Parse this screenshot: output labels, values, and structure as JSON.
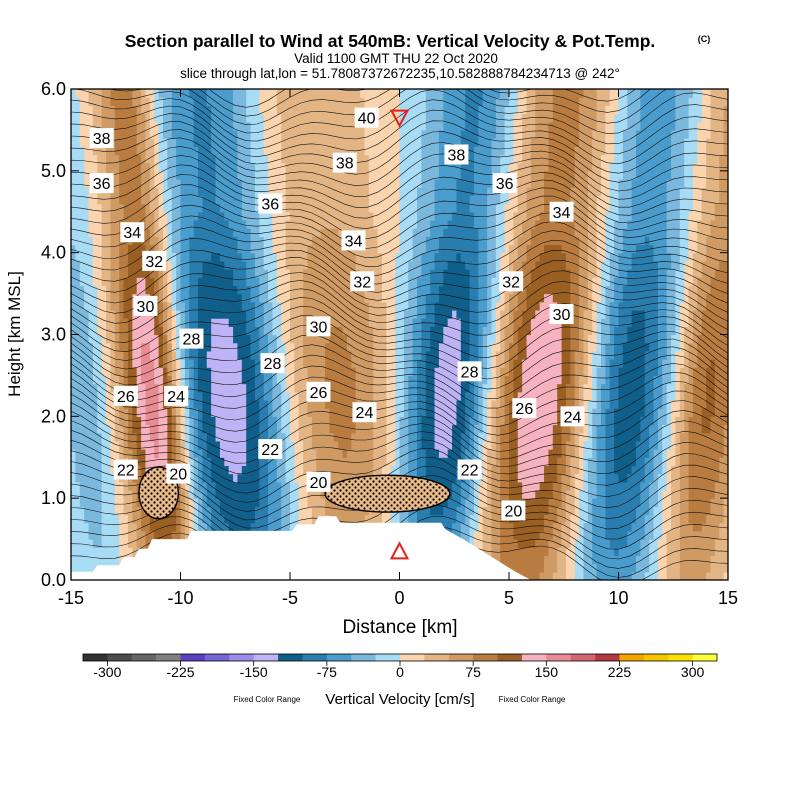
{
  "chart_data": {
    "type": "cross-section",
    "title": "Section parallel to Wind at 540mB: Vertical Velocity & Pot.Temp.",
    "copyright": "(C)",
    "valid": "Valid 1100 GMT THU 22 Oct 2020",
    "slice": "slice through lat,lon = 51.78087372672235,10.582888784234713 @ 242°",
    "xlabel": "Distance [km]",
    "ylabel": "Height [km MSL]",
    "xlim": [
      -15,
      15
    ],
    "ylim": [
      0,
      6
    ],
    "x_ticks": [
      -15,
      -10,
      -5,
      0,
      5,
      10,
      15
    ],
    "x_tick_labels": [
      "-15",
      "-10",
      "-5",
      "0",
      "5",
      "10",
      "15"
    ],
    "y_ticks": [
      0,
      1,
      2,
      3,
      4,
      5,
      6
    ],
    "y_tick_labels": [
      "0.0",
      "1.0",
      "2.0",
      "3.0",
      "4.0",
      "5.0",
      "6.0"
    ],
    "velocity_bands": [
      {
        "center": -14.3,
        "width": 1.0,
        "value": -60
      },
      {
        "center": -12.6,
        "width": 1.3,
        "value": 70
      },
      {
        "center": -11.3,
        "width": 0.9,
        "value": 150
      },
      {
        "center": -7.8,
        "width": 2.2,
        "value": -150
      },
      {
        "center": -4.7,
        "width": 1.6,
        "value": 80
      },
      {
        "center": -2.0,
        "width": 1.6,
        "value": 60
      },
      {
        "center": 1.5,
        "width": 1.3,
        "value": -60
      },
      {
        "center": 3.0,
        "width": 1.3,
        "value": -120
      },
      {
        "center": 6.8,
        "width": 2.0,
        "value": 160
      },
      {
        "center": 10.5,
        "width": 1.6,
        "value": -140
      },
      {
        "center": 14.3,
        "width": 1.2,
        "value": 110
      }
    ],
    "theta_contour_labels": [
      {
        "x": -13.6,
        "y": 5.4,
        "text": "38"
      },
      {
        "x": -13.6,
        "y": 4.85,
        "text": "36"
      },
      {
        "x": -12.2,
        "y": 4.25,
        "text": "34"
      },
      {
        "x": -11.2,
        "y": 3.9,
        "text": "32"
      },
      {
        "x": -11.6,
        "y": 3.35,
        "text": "30"
      },
      {
        "x": -9.5,
        "y": 2.95,
        "text": "28"
      },
      {
        "x": -12.5,
        "y": 2.25,
        "text": "26"
      },
      {
        "x": -10.2,
        "y": 2.25,
        "text": "24"
      },
      {
        "x": -12.5,
        "y": 1.35,
        "text": "22"
      },
      {
        "x": -10.1,
        "y": 1.3,
        "text": "20"
      },
      {
        "x": -5.9,
        "y": 4.6,
        "text": "36"
      },
      {
        "x": -5.8,
        "y": 2.65,
        "text": "28"
      },
      {
        "x": -3.7,
        "y": 3.1,
        "text": "30"
      },
      {
        "x": -3.7,
        "y": 2.3,
        "text": "26"
      },
      {
        "x": -5.9,
        "y": 1.6,
        "text": "22"
      },
      {
        "x": -3.7,
        "y": 1.2,
        "text": "20"
      },
      {
        "x": -1.5,
        "y": 5.65,
        "text": "40"
      },
      {
        "x": -2.5,
        "y": 5.1,
        "text": "38"
      },
      {
        "x": -2.1,
        "y": 4.15,
        "text": "34"
      },
      {
        "x": -1.7,
        "y": 3.65,
        "text": "32"
      },
      {
        "x": -1.6,
        "y": 2.05,
        "text": "24"
      },
      {
        "x": 2.6,
        "y": 5.2,
        "text": "38"
      },
      {
        "x": 3.2,
        "y": 2.55,
        "text": "28"
      },
      {
        "x": 3.2,
        "y": 1.35,
        "text": "22"
      },
      {
        "x": 5.2,
        "y": 0.85,
        "text": "20"
      },
      {
        "x": 4.8,
        "y": 4.85,
        "text": "36"
      },
      {
        "x": 7.4,
        "y": 4.5,
        "text": "34"
      },
      {
        "x": 5.1,
        "y": 3.65,
        "text": "32"
      },
      {
        "x": 7.4,
        "y": 3.25,
        "text": "30"
      },
      {
        "x": 5.7,
        "y": 2.1,
        "text": "26"
      },
      {
        "x": 7.9,
        "y": 2.0,
        "text": "24"
      }
    ],
    "markers": [
      {
        "x": 0.0,
        "y": 5.65,
        "shape": "triangle-down",
        "color": "#e8201a"
      },
      {
        "x": 0.0,
        "y": 0.35,
        "shape": "triangle-up",
        "color": "#e8201a"
      }
    ],
    "terrain": [
      {
        "x": -15,
        "y": 0.1
      },
      {
        "x": -14,
        "y": 0.1
      },
      {
        "x": -13.8,
        "y": 0.18
      },
      {
        "x": -12.8,
        "y": 0.18
      },
      {
        "x": -12.6,
        "y": 0.28
      },
      {
        "x": -12.1,
        "y": 0.28
      },
      {
        "x": -11.9,
        "y": 0.38
      },
      {
        "x": -11.5,
        "y": 0.38
      },
      {
        "x": -11.3,
        "y": 0.5
      },
      {
        "x": -9.7,
        "y": 0.5
      },
      {
        "x": -9.5,
        "y": 0.6
      },
      {
        "x": -4.9,
        "y": 0.6
      },
      {
        "x": -4.7,
        "y": 0.68
      },
      {
        "x": -3.9,
        "y": 0.68
      },
      {
        "x": -3.7,
        "y": 0.78
      },
      {
        "x": -2.9,
        "y": 0.78
      },
      {
        "x": -2.7,
        "y": 0.7
      },
      {
        "x": 1.9,
        "y": 0.7
      },
      {
        "x": 2.1,
        "y": 0.62
      },
      {
        "x": 2.9,
        "y": 0.5
      },
      {
        "x": 3.5,
        "y": 0.4
      },
      {
        "x": 4.1,
        "y": 0.3
      },
      {
        "x": 4.7,
        "y": 0.2
      },
      {
        "x": 5.3,
        "y": 0.1
      },
      {
        "x": 6.0,
        "y": 0.0
      },
      {
        "x": 15,
        "y": 0.0
      }
    ],
    "dotted_regions": [
      {
        "x": [
          -11.9,
          -10.1
        ],
        "y": [
          0.75,
          1.38
        ]
      },
      {
        "x": [
          -3.4,
          2.3
        ],
        "y": [
          0.83,
          1.28
        ]
      }
    ],
    "colorbar": {
      "label": "Vertical Velocity [cm/s]",
      "side_note_left": "Fixed Color Range",
      "side_note_right": "Fixed Color Range",
      "tick_labels": [
        "-300",
        "-225",
        "-150",
        "-75",
        "0",
        "75",
        "150",
        "225",
        "300"
      ],
      "colors": [
        "#333333",
        "#4d4d4d",
        "#666666",
        "#808080",
        "#5a3fbf",
        "#7566d9",
        "#9a8ce8",
        "#bdb3f5",
        "#0f5f8a",
        "#2a7eaf",
        "#4a9ccc",
        "#7ab8dd",
        "#a8dcf5",
        "#f9d4ae",
        "#e3b585",
        "#cf9a63",
        "#b97c40",
        "#9a5f22",
        "#f6b2be",
        "#e88b93",
        "#d26670",
        "#b33a45",
        "#f2a400",
        "#f7c500",
        "#fbe100",
        "#ffff3a"
      ]
    }
  }
}
